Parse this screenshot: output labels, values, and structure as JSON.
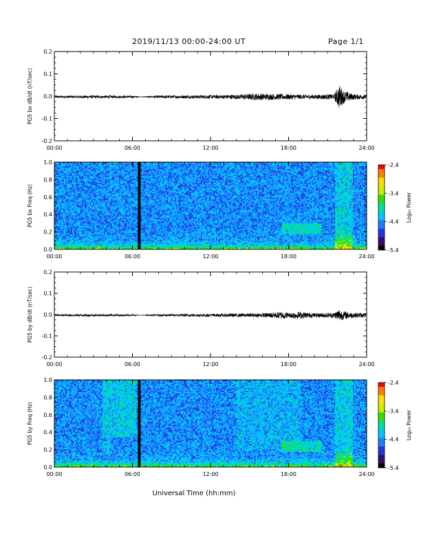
{
  "header": {
    "title": "2019/11/13  00:00-24:00 UT",
    "page": "Page 1/1"
  },
  "x_axis": {
    "ticks": [
      "00:00",
      "06:00",
      "12:00",
      "18:00",
      "24:00"
    ],
    "range_hours": [
      0,
      24
    ],
    "title": "Universal Time (hh:mm)"
  },
  "colorbar": {
    "label": "Log₁₀ Power",
    "ticks": [
      "-2.4",
      "-3.4",
      "-4.4",
      "-5.4"
    ],
    "range": [
      -5.4,
      -2.4
    ],
    "colormap": [
      "#000000",
      "#3a0a6e",
      "#1b3bd8",
      "#1f7dff",
      "#00c8ff",
      "#00e0a0",
      "#33e000",
      "#c8f000",
      "#ffe000",
      "#ff8000",
      "#ff0000"
    ]
  },
  "chart_data": [
    {
      "type": "line",
      "ylabel": "PG5 bx dB/dt (nT/sec)",
      "ylim": [
        -0.2,
        0.2
      ],
      "yticks": [
        "0.2",
        "0.1",
        "0.0",
        "-0.1",
        "-0.2"
      ],
      "xlim": [
        0,
        24
      ],
      "series": [
        {
          "color": "#000000",
          "x": [
            0,
            2,
            4,
            6,
            6.6,
            8,
            10,
            12,
            14,
            15.5,
            17,
            18,
            19,
            20,
            21.5,
            21.9,
            22.2,
            23,
            24
          ],
          "y_envelope": [
            0.005,
            0.006,
            0.006,
            0.005,
            0.0,
            0.006,
            0.007,
            0.008,
            0.01,
            0.015,
            0.013,
            0.012,
            0.01,
            0.01,
            0.012,
            0.055,
            0.03,
            0.012,
            0.01
          ]
        }
      ]
    },
    {
      "type": "heatmap",
      "ylabel": "PG5 bx Freq (Hz)",
      "ylim": [
        0,
        1.0
      ],
      "yticks": [
        "1.0",
        "0.8",
        "0.6",
        "0.4",
        "0.2",
        "0.0"
      ],
      "xlim": [
        0,
        24
      ],
      "clim": [
        -5.4,
        -2.4
      ],
      "gap_hours": [
        6.4,
        6.6
      ]
    },
    {
      "type": "line",
      "ylabel": "PG5 by dB/dt (nT/sec)",
      "ylim": [
        -0.2,
        0.2
      ],
      "yticks": [
        "0.2",
        "0.1",
        "0.0",
        "-0.1",
        "-0.2"
      ],
      "xlim": [
        0,
        24
      ],
      "series": [
        {
          "color": "#000000",
          "x": [
            0,
            2,
            4,
            6,
            6.6,
            8,
            10,
            12,
            14,
            16,
            17.7,
            18,
            18.5,
            20,
            21.5,
            21.9,
            22.2,
            23,
            24
          ],
          "y_envelope": [
            0.004,
            0.005,
            0.005,
            0.004,
            0.0,
            0.005,
            0.006,
            0.007,
            0.008,
            0.009,
            0.018,
            0.01,
            0.018,
            0.01,
            0.012,
            0.03,
            0.02,
            0.012,
            0.01
          ]
        }
      ]
    },
    {
      "type": "heatmap",
      "ylabel": "PG5 by Freq (Hz)",
      "ylim": [
        0,
        1.0
      ],
      "yticks": [
        "1.0",
        "0.8",
        "0.6",
        "0.4",
        "0.2",
        "0.0"
      ],
      "xlim": [
        0,
        24
      ],
      "clim": [
        -5.4,
        -2.4
      ],
      "gap_hours": [
        6.4,
        6.6
      ]
    }
  ]
}
